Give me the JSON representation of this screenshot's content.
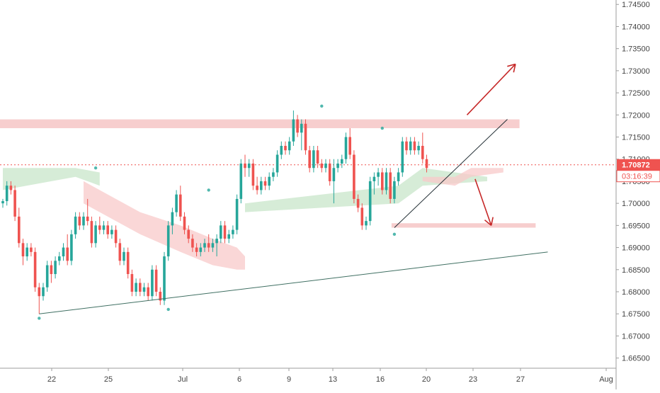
{
  "price_tag": {
    "price": "1.70872",
    "countdown": "03:16:39"
  },
  "colors": {
    "up": "#26a69a",
    "down": "#ef5350",
    "cloud_bull": "#c8e6c9",
    "cloud_bear": "#f8c9c9",
    "zone": "#f1a5a5",
    "arrow": "#c62828",
    "trendline": "#3f6f62",
    "price_line": "#ef5350",
    "axis_text": "#444444",
    "axis_line": "#9e9e9e"
  },
  "chart_data": {
    "type": "candlestick",
    "x_ticks": [
      "22",
      "25",
      "Jul",
      "6",
      "9",
      "13",
      "16",
      "20",
      "23",
      "27",
      "Aug"
    ],
    "y_ticks": [
      "1.74500",
      "1.74000",
      "1.73500",
      "1.73000",
      "1.72500",
      "1.72000",
      "1.71500",
      "1.71000",
      "1.70500",
      "1.70000",
      "1.69500",
      "1.69000",
      "1.68500",
      "1.68000",
      "1.67500",
      "1.67000",
      "1.66500"
    ],
    "ylim": [
      1.6635,
      1.746
    ],
    "current_price": 1.70872,
    "series": [
      {
        "name": "candles",
        "ohlc": [
          [
            1.7,
            1.701,
            1.699,
            1.7005
          ],
          [
            1.7005,
            1.705,
            1.6995,
            1.704
          ],
          [
            1.704,
            1.705,
            1.702,
            1.703
          ],
          [
            1.703,
            1.704,
            1.696,
            1.697
          ],
          [
            1.697,
            1.699,
            1.69,
            1.691
          ],
          [
            1.691,
            1.692,
            1.686,
            1.688
          ],
          [
            1.688,
            1.691,
            1.687,
            1.69
          ],
          [
            1.69,
            1.691,
            1.688,
            1.689
          ],
          [
            1.689,
            1.69,
            1.68,
            1.681
          ],
          [
            1.681,
            1.682,
            1.675,
            1.679
          ],
          [
            1.679,
            1.682,
            1.678,
            1.681
          ],
          [
            1.681,
            1.687,
            1.68,
            1.686
          ],
          [
            1.686,
            1.687,
            1.682,
            1.684
          ],
          [
            1.684,
            1.688,
            1.683,
            1.687
          ],
          [
            1.687,
            1.689,
            1.686,
            1.688
          ],
          [
            1.688,
            1.691,
            1.687,
            1.69
          ],
          [
            1.69,
            1.693,
            1.686,
            1.687
          ],
          [
            1.687,
            1.694,
            1.686,
            1.693
          ],
          [
            1.693,
            1.698,
            1.692,
            1.697
          ],
          [
            1.697,
            1.698,
            1.694,
            1.695
          ],
          [
            1.695,
            1.698,
            1.694,
            1.697
          ],
          [
            1.697,
            1.701,
            1.695,
            1.696
          ],
          [
            1.696,
            1.697,
            1.69,
            1.691
          ],
          [
            1.691,
            1.696,
            1.69,
            1.695
          ],
          [
            1.695,
            1.697,
            1.693,
            1.694
          ],
          [
            1.694,
            1.696,
            1.693,
            1.695
          ],
          [
            1.695,
            1.696,
            1.692,
            1.693
          ],
          [
            1.693,
            1.695,
            1.692,
            1.694
          ],
          [
            1.694,
            1.695,
            1.69,
            1.691
          ],
          [
            1.691,
            1.692,
            1.686,
            1.687
          ],
          [
            1.687,
            1.69,
            1.686,
            1.689
          ],
          [
            1.689,
            1.69,
            1.683,
            1.684
          ],
          [
            1.684,
            1.685,
            1.679,
            1.68
          ],
          [
            1.68,
            1.683,
            1.679,
            1.682
          ],
          [
            1.682,
            1.683,
            1.679,
            1.68
          ],
          [
            1.68,
            1.682,
            1.679,
            1.681
          ],
          [
            1.681,
            1.682,
            1.678,
            1.679
          ],
          [
            1.679,
            1.686,
            1.678,
            1.685
          ],
          [
            1.685,
            1.686,
            1.679,
            1.68
          ],
          [
            1.68,
            1.681,
            1.677,
            1.678
          ],
          [
            1.678,
            1.689,
            1.677,
            1.688
          ],
          [
            1.688,
            1.696,
            1.687,
            1.695
          ],
          [
            1.695,
            1.699,
            1.693,
            1.698
          ],
          [
            1.698,
            1.703,
            1.697,
            1.702
          ],
          [
            1.702,
            1.704,
            1.696,
            1.697
          ],
          [
            1.697,
            1.698,
            1.693,
            1.694
          ],
          [
            1.694,
            1.695,
            1.691,
            1.692
          ],
          [
            1.692,
            1.693,
            1.689,
            1.69
          ],
          [
            1.69,
            1.691,
            1.688,
            1.689
          ],
          [
            1.689,
            1.691,
            1.688,
            1.69
          ],
          [
            1.69,
            1.692,
            1.689,
            1.691
          ],
          [
            1.691,
            1.693,
            1.689,
            1.69
          ],
          [
            1.69,
            1.692,
            1.689,
            1.691
          ],
          [
            1.691,
            1.693,
            1.688,
            1.692
          ],
          [
            1.692,
            1.696,
            1.691,
            1.695
          ],
          [
            1.695,
            1.696,
            1.691,
            1.692
          ],
          [
            1.692,
            1.694,
            1.691,
            1.693
          ],
          [
            1.693,
            1.695,
            1.692,
            1.694
          ],
          [
            1.694,
            1.702,
            1.693,
            1.701
          ],
          [
            1.701,
            1.71,
            1.7,
            1.709
          ],
          [
            1.709,
            1.711,
            1.706,
            1.708
          ],
          [
            1.708,
            1.71,
            1.706,
            1.709
          ],
          [
            1.709,
            1.71,
            1.703,
            1.704
          ],
          [
            1.704,
            1.706,
            1.702,
            1.703
          ],
          [
            1.703,
            1.706,
            1.702,
            1.705
          ],
          [
            1.705,
            1.706,
            1.703,
            1.704
          ],
          [
            1.704,
            1.707,
            1.703,
            1.706
          ],
          [
            1.706,
            1.708,
            1.705,
            1.707
          ],
          [
            1.707,
            1.712,
            1.706,
            1.711
          ],
          [
            1.711,
            1.714,
            1.71,
            1.713
          ],
          [
            1.713,
            1.714,
            1.711,
            1.712
          ],
          [
            1.712,
            1.715,
            1.711,
            1.714
          ],
          [
            1.714,
            1.721,
            1.713,
            1.719
          ],
          [
            1.719,
            1.72,
            1.715,
            1.716
          ],
          [
            1.716,
            1.719,
            1.712,
            1.718
          ],
          [
            1.718,
            1.719,
            1.711,
            1.712
          ],
          [
            1.712,
            1.713,
            1.707,
            1.708
          ],
          [
            1.708,
            1.713,
            1.707,
            1.712
          ],
          [
            1.712,
            1.713,
            1.708,
            1.709
          ],
          [
            1.709,
            1.71,
            1.707,
            1.708
          ],
          [
            1.708,
            1.71,
            1.707,
            1.709
          ],
          [
            1.709,
            1.71,
            1.704,
            1.705
          ],
          [
            1.705,
            1.71,
            1.7,
            1.708
          ],
          [
            1.708,
            1.71,
            1.707,
            1.709
          ],
          [
            1.709,
            1.711,
            1.708,
            1.71
          ],
          [
            1.71,
            1.716,
            1.709,
            1.715
          ],
          [
            1.715,
            1.717,
            1.71,
            1.711
          ],
          [
            1.711,
            1.712,
            1.7,
            1.701
          ],
          [
            1.701,
            1.702,
            1.698,
            1.699
          ],
          [
            1.699,
            1.7,
            1.694,
            1.695
          ],
          [
            1.695,
            1.697,
            1.694,
            1.696
          ],
          [
            1.696,
            1.706,
            1.695,
            1.705
          ],
          [
            1.705,
            1.707,
            1.702,
            1.706
          ],
          [
            1.706,
            1.708,
            1.704,
            1.707
          ],
          [
            1.707,
            1.708,
            1.702,
            1.703
          ],
          [
            1.703,
            1.708,
            1.702,
            1.707
          ],
          [
            1.707,
            1.708,
            1.7,
            1.701
          ],
          [
            1.701,
            1.706,
            1.7,
            1.705
          ],
          [
            1.705,
            1.708,
            1.704,
            1.707
          ],
          [
            1.707,
            1.715,
            1.706,
            1.714
          ],
          [
            1.714,
            1.715,
            1.711,
            1.712
          ],
          [
            1.712,
            1.715,
            1.711,
            1.714
          ],
          [
            1.714,
            1.715,
            1.711,
            1.712
          ],
          [
            1.712,
            1.714,
            1.711,
            1.713
          ],
          [
            1.713,
            1.716,
            1.709,
            1.71
          ],
          [
            1.71,
            1.711,
            1.707,
            1.708
          ]
        ]
      },
      {
        "name": "cloud",
        "bull": [
          [
            0,
            1.708,
            1.703
          ],
          [
            18,
            1.708,
            1.706
          ],
          [
            24,
            1.707,
            1.704
          ],
          [
            60,
            1.7,
            1.698
          ],
          [
            98,
            1.704,
            1.7
          ],
          [
            104,
            1.708,
            1.704
          ],
          [
            120,
            1.706,
            1.705
          ]
        ],
        "bear": [
          [
            20,
            1.705,
            1.7
          ],
          [
            34,
            1.698,
            1.693
          ],
          [
            44,
            1.695,
            1.689
          ],
          [
            52,
            1.692,
            1.686
          ],
          [
            58,
            1.69,
            1.685
          ],
          [
            60,
            1.688,
            1.685
          ],
          [
            104,
            1.706,
            1.705
          ],
          [
            112,
            1.706,
            1.704
          ],
          [
            116,
            1.708,
            1.706
          ],
          [
            124,
            1.708,
            1.707
          ]
        ]
      }
    ],
    "annotations": {
      "resistance_zone": {
        "x": [
          0,
          128
        ],
        "y": [
          1.717,
          1.719
        ]
      },
      "support_zone": {
        "x": [
          97,
          132
        ],
        "y": [
          1.6945,
          1.6955
        ]
      },
      "long_trendline": [
        [
          9,
          1.675
        ],
        [
          135,
          1.689
        ]
      ],
      "short_trendline": [
        [
          97,
          1.6945
        ],
        [
          125,
          1.719
        ]
      ],
      "arrow_up": [
        [
          115,
          1.72
        ],
        [
          127,
          1.7315
        ]
      ],
      "arrow_down": [
        [
          117,
          1.7055
        ],
        [
          121,
          1.695
        ]
      ],
      "pivot_markers": [
        [
          9,
          1.674
        ],
        [
          23,
          1.708
        ],
        [
          41,
          1.676
        ],
        [
          51,
          1.703
        ],
        [
          79,
          1.722
        ],
        [
          94,
          1.717
        ],
        [
          97,
          1.693
        ]
      ]
    }
  }
}
